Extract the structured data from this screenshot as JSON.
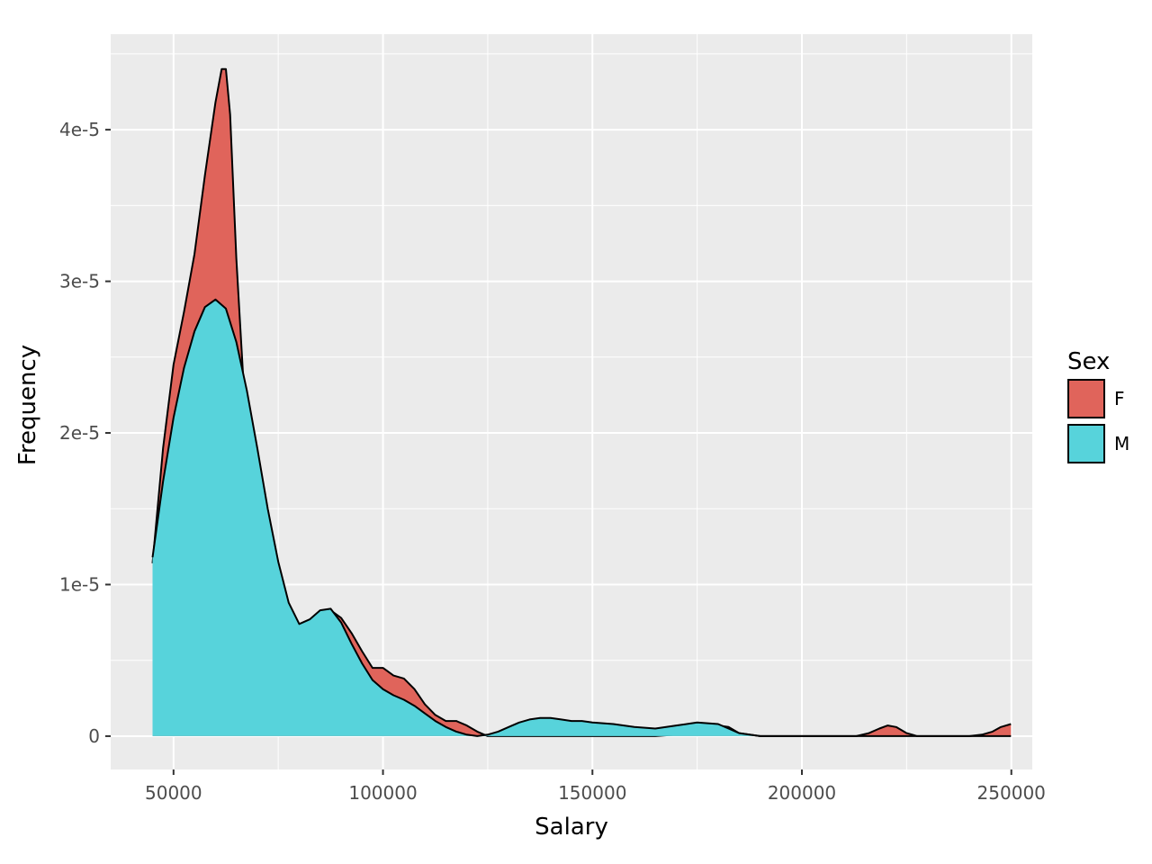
{
  "chart_data": {
    "type": "area",
    "subtype": "density",
    "xlabel": "Salary",
    "ylabel": "Frequency",
    "xlim": [
      35000,
      255000
    ],
    "ylim": [
      -2.2e-06,
      4.63e-05
    ],
    "x_ticks": [
      50000,
      100000,
      150000,
      200000,
      250000
    ],
    "x_tick_labels": [
      "50000",
      "100000",
      "150000",
      "200000",
      "250000"
    ],
    "y_ticks": [
      0,
      1e-05,
      2e-05,
      3e-05,
      4e-05
    ],
    "y_tick_labels": [
      "0",
      "1e-5",
      "2e-5",
      "3e-5",
      "4e-5"
    ],
    "grid": true,
    "legend": {
      "title": "Sex",
      "position": "right"
    },
    "series": [
      {
        "name": "F",
        "color": "#E0645B",
        "x": [
          45000,
          47500,
          50000,
          52500,
          55000,
          57500,
          60000,
          61500,
          62500,
          63500,
          65000,
          67500,
          70000,
          72500,
          75000,
          77500,
          80000,
          82500,
          85000,
          87500,
          90000,
          92500,
          95000,
          97500,
          100000,
          102500,
          105000,
          107500,
          110000,
          112500,
          115000,
          117500,
          120000,
          122500,
          125000,
          127500,
          130000,
          135000,
          140000,
          145000,
          150000,
          155000,
          160000,
          165000,
          170000,
          175000,
          180000,
          182500,
          185000,
          190000,
          195000,
          200000,
          205000,
          210000,
          213000,
          216000,
          218500,
          220500,
          222500,
          225000,
          227500,
          230000,
          235000,
          240000,
          243000,
          245500,
          247500,
          249900
        ],
        "y": [
          1.14e-05,
          1.9e-05,
          2.45e-05,
          2.8e-05,
          3.18e-05,
          3.7e-05,
          4.18e-05,
          4.4e-05,
          4.4e-05,
          4.1e-05,
          3.15e-05,
          1.95e-05,
          1.63e-05,
          1.25e-05,
          9.3e-06,
          7.6e-06,
          7.1e-06,
          7.3e-06,
          7.9e-06,
          8.3e-06,
          7.8e-06,
          6.8e-06,
          5.6e-06,
          4.5e-06,
          4.5e-06,
          4e-06,
          3.8e-06,
          3.1e-06,
          2.1e-06,
          1.4e-06,
          1e-06,
          1e-06,
          7e-07,
          3e-07,
          0.0,
          0.0,
          0.0,
          0.0,
          0.0,
          0.0,
          0.0,
          0.0,
          0.0,
          0.0,
          1e-07,
          4e-07,
          7e-07,
          6e-07,
          2e-07,
          0.0,
          0.0,
          0.0,
          0.0,
          0.0,
          0.0,
          2e-07,
          5e-07,
          7e-07,
          6e-07,
          2e-07,
          0.0,
          0.0,
          0.0,
          0.0,
          1e-07,
          3e-07,
          6e-07,
          8e-07
        ]
      },
      {
        "name": "M",
        "color": "#57D3DB",
        "x": [
          45000,
          47500,
          50000,
          52500,
          55000,
          57500,
          60000,
          62500,
          65000,
          67500,
          70000,
          72500,
          75000,
          77500,
          80000,
          82500,
          85000,
          87500,
          90000,
          92500,
          95000,
          97500,
          100000,
          102500,
          105000,
          107500,
          110000,
          112500,
          115000,
          117500,
          120000,
          122500,
          125000,
          127500,
          130000,
          132500,
          135000,
          137500,
          140000,
          142500,
          145000,
          147500,
          150000,
          155000,
          160000,
          165000,
          170000,
          175000,
          180000,
          182500,
          185000,
          187500,
          190000,
          195000,
          200000,
          210000,
          220000,
          230000,
          240000,
          249900
        ],
        "y": [
          1.18e-05,
          1.68e-05,
          2.1e-05,
          2.43e-05,
          2.67e-05,
          2.83e-05,
          2.88e-05,
          2.82e-05,
          2.6e-05,
          2.28e-05,
          1.9e-05,
          1.5e-05,
          1.15e-05,
          8.8e-06,
          7.4e-06,
          7.7e-06,
          8.3e-06,
          8.4e-06,
          7.5e-06,
          6.1e-06,
          4.8e-06,
          3.7e-06,
          3.1e-06,
          2.7e-06,
          2.4e-06,
          2e-06,
          1.5e-06,
          1e-06,
          6e-07,
          3e-07,
          1e-07,
          0.0,
          1e-07,
          3e-07,
          6e-07,
          9e-07,
          1.1e-06,
          1.2e-06,
          1.2e-06,
          1.1e-06,
          1e-06,
          1e-06,
          9e-07,
          8e-07,
          6e-07,
          5e-07,
          7e-07,
          9e-07,
          8e-07,
          5e-07,
          2e-07,
          1e-07,
          0.0,
          0.0,
          0.0,
          0.0,
          0.0,
          0.0,
          0.0,
          0.0
        ]
      }
    ]
  }
}
